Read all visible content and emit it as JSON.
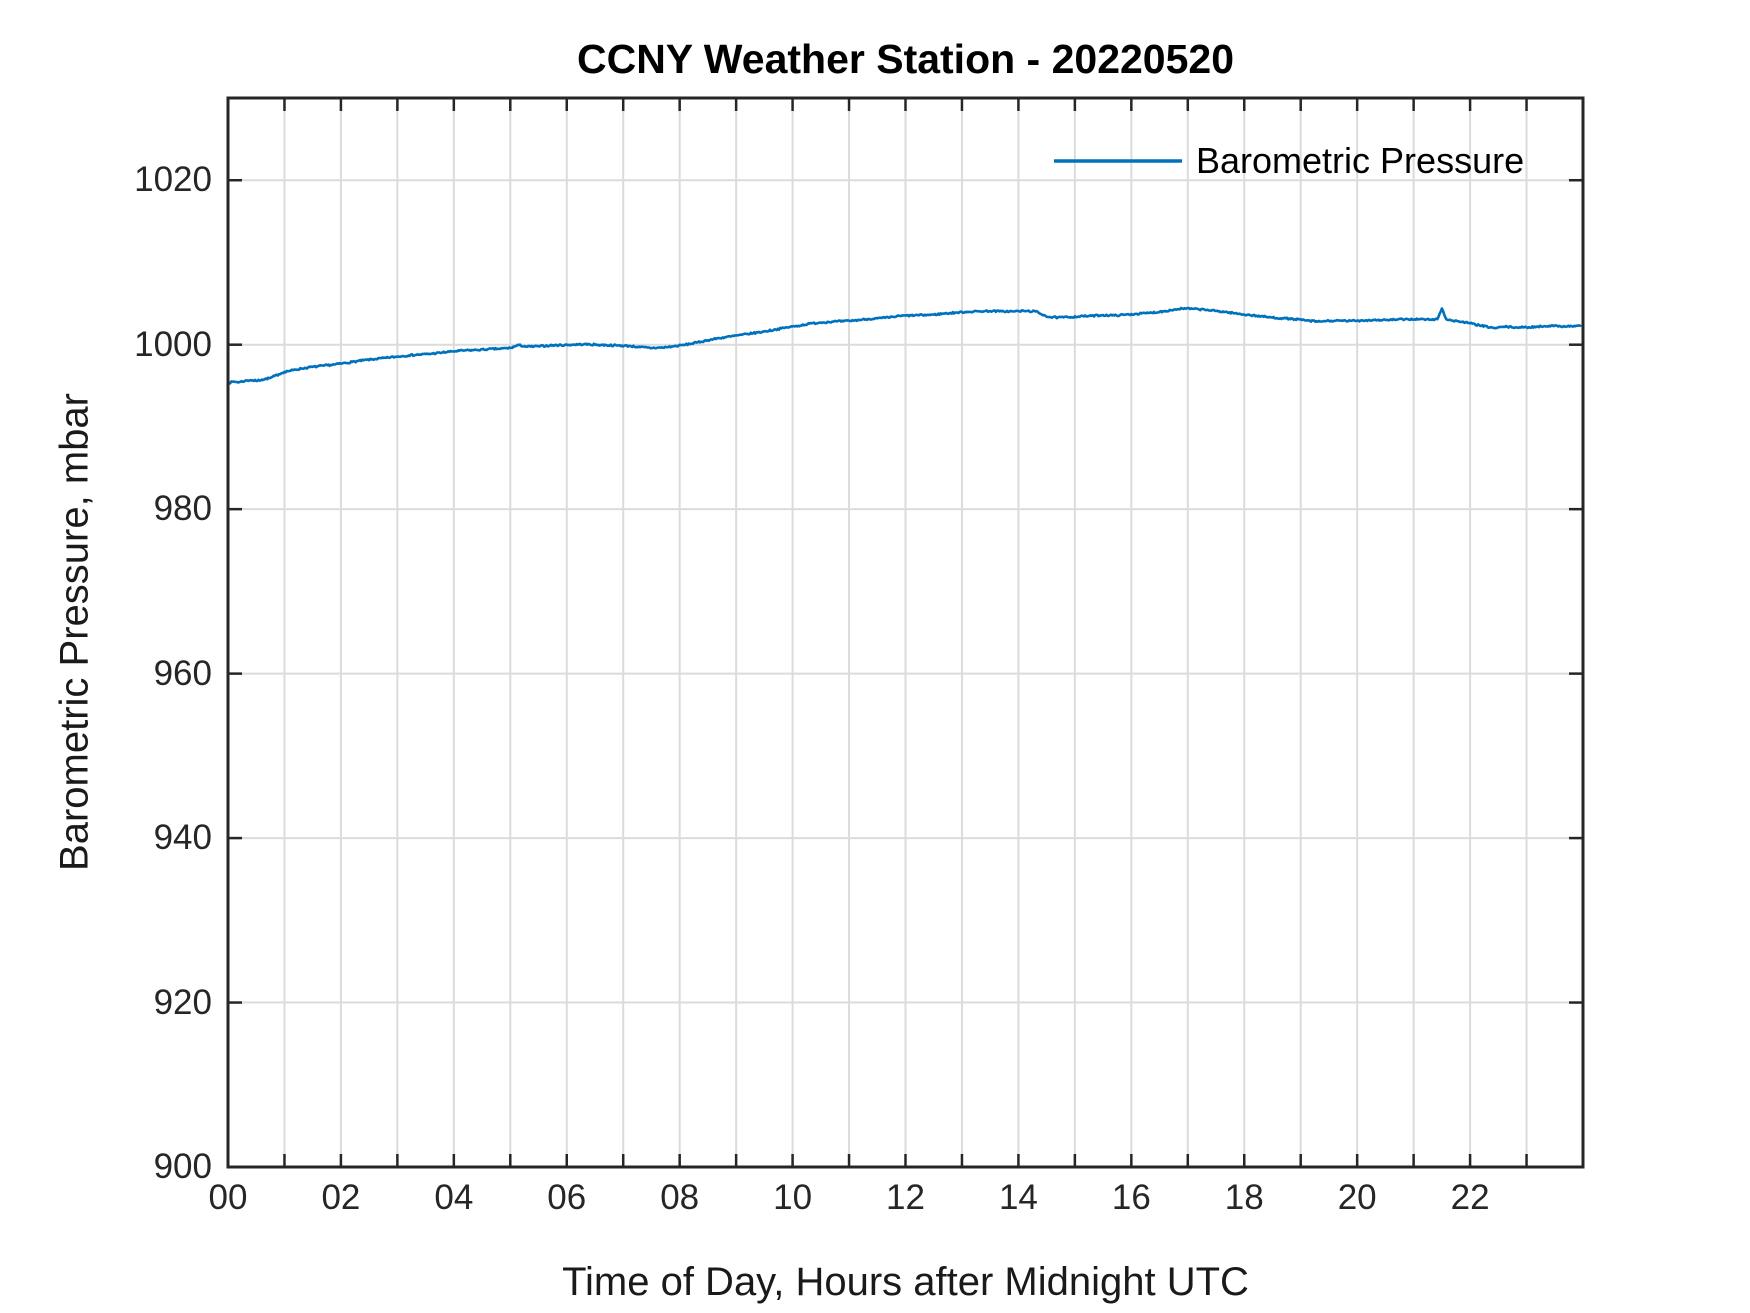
{
  "figure": {
    "title": "CCNY Weather Station - 20220520",
    "xlabel": "Time of Day, Hours after Midnight UTC",
    "ylabel": "Barometric Pressure, mbar",
    "legend": {
      "box": false,
      "position": "top-right",
      "entries": [
        {
          "label": "Barometric Pressure",
          "color": "#0072BD"
        }
      ]
    }
  },
  "colors": {
    "line": "#0072BD",
    "axis": "#262626",
    "grid": "#dbdbdb",
    "background": "#ffffff"
  },
  "chart_data": {
    "type": "line",
    "title": "CCNY Weather Station - 20220520",
    "xlabel": "Time of Day, Hours after Midnight UTC",
    "ylabel": "Barometric Pressure, mbar",
    "xlim": [
      0,
      24
    ],
    "ylim": [
      900,
      1030
    ],
    "grid": true,
    "x_grid_step_hours": 1,
    "x_tick_values": [
      0,
      2,
      4,
      6,
      8,
      10,
      12,
      14,
      16,
      18,
      20,
      22
    ],
    "x_tick_labels": [
      "00",
      "02",
      "04",
      "06",
      "08",
      "10",
      "12",
      "14",
      "16",
      "18",
      "20",
      "22"
    ],
    "y_tick_values": [
      900,
      920,
      940,
      960,
      980,
      1000,
      1020
    ],
    "y_tick_labels": [
      "900",
      "920",
      "940",
      "960",
      "980",
      "1000",
      "1020"
    ],
    "noise_amplitude_mbar": 0.1,
    "series": [
      {
        "name": "Barometric Pressure",
        "color": "#0072BD",
        "units": "mbar",
        "points": [
          [
            0.0,
            995.35
          ],
          [
            0.1,
            995.5
          ],
          [
            0.2,
            995.45
          ],
          [
            0.3,
            995.6
          ],
          [
            0.4,
            995.7
          ],
          [
            0.5,
            995.6
          ],
          [
            0.6,
            995.75
          ],
          [
            0.75,
            995.95
          ],
          [
            0.9,
            996.4
          ],
          [
            1.0,
            996.7
          ],
          [
            1.15,
            996.9
          ],
          [
            1.3,
            997.1
          ],
          [
            1.5,
            997.3
          ],
          [
            1.7,
            997.45
          ],
          [
            1.9,
            997.6
          ],
          [
            2.0,
            997.7
          ],
          [
            2.2,
            997.9
          ],
          [
            2.4,
            998.1
          ],
          [
            2.6,
            998.25
          ],
          [
            2.8,
            998.4
          ],
          [
            3.0,
            998.55
          ],
          [
            3.2,
            998.7
          ],
          [
            3.4,
            998.8
          ],
          [
            3.6,
            998.9
          ],
          [
            3.8,
            999.05
          ],
          [
            4.0,
            999.2
          ],
          [
            4.2,
            999.3
          ],
          [
            4.4,
            999.35
          ],
          [
            4.6,
            999.45
          ],
          [
            4.8,
            999.5
          ],
          [
            5.0,
            999.6
          ],
          [
            5.15,
            999.95
          ],
          [
            5.3,
            999.75
          ],
          [
            5.5,
            999.8
          ],
          [
            5.7,
            999.9
          ],
          [
            5.9,
            999.95
          ],
          [
            6.1,
            1000.0
          ],
          [
            6.3,
            1000.05
          ],
          [
            6.5,
            1000.0
          ],
          [
            6.7,
            999.95
          ],
          [
            6.9,
            999.9
          ],
          [
            7.1,
            999.85
          ],
          [
            7.3,
            999.7
          ],
          [
            7.5,
            999.6
          ],
          [
            7.7,
            999.65
          ],
          [
            7.9,
            999.8
          ],
          [
            8.1,
            1000.0
          ],
          [
            8.3,
            1000.25
          ],
          [
            8.5,
            1000.55
          ],
          [
            8.7,
            1000.8
          ],
          [
            8.9,
            1001.0
          ],
          [
            9.1,
            1001.2
          ],
          [
            9.3,
            1001.4
          ],
          [
            9.5,
            1001.6
          ],
          [
            9.7,
            1001.85
          ],
          [
            9.9,
            1002.1
          ],
          [
            10.1,
            1002.3
          ],
          [
            10.3,
            1002.55
          ],
          [
            10.5,
            1002.7
          ],
          [
            10.7,
            1002.8
          ],
          [
            10.9,
            1002.85
          ],
          [
            11.1,
            1002.95
          ],
          [
            11.3,
            1003.1
          ],
          [
            11.5,
            1003.2
          ],
          [
            11.7,
            1003.3
          ],
          [
            11.9,
            1003.5
          ],
          [
            12.1,
            1003.55
          ],
          [
            12.3,
            1003.6
          ],
          [
            12.5,
            1003.65
          ],
          [
            12.7,
            1003.8
          ],
          [
            12.9,
            1003.9
          ],
          [
            13.1,
            1004.0
          ],
          [
            13.3,
            1004.05
          ],
          [
            13.5,
            1004.1
          ],
          [
            13.7,
            1004.05
          ],
          [
            13.9,
            1004.05
          ],
          [
            14.1,
            1004.1
          ],
          [
            14.3,
            1004.05
          ],
          [
            14.45,
            1003.6
          ],
          [
            14.55,
            1003.35
          ],
          [
            14.7,
            1003.3
          ],
          [
            14.9,
            1003.35
          ],
          [
            15.1,
            1003.45
          ],
          [
            15.3,
            1003.5
          ],
          [
            15.5,
            1003.6
          ],
          [
            15.7,
            1003.55
          ],
          [
            15.9,
            1003.65
          ],
          [
            16.1,
            1003.75
          ],
          [
            16.3,
            1003.85
          ],
          [
            16.5,
            1004.0
          ],
          [
            16.7,
            1004.2
          ],
          [
            16.9,
            1004.4
          ],
          [
            17.1,
            1004.35
          ],
          [
            17.3,
            1004.25
          ],
          [
            17.5,
            1004.1
          ],
          [
            17.7,
            1003.95
          ],
          [
            17.9,
            1003.75
          ],
          [
            18.1,
            1003.6
          ],
          [
            18.3,
            1003.45
          ],
          [
            18.5,
            1003.3
          ],
          [
            18.7,
            1003.2
          ],
          [
            18.9,
            1003.1
          ],
          [
            19.1,
            1002.95
          ],
          [
            19.3,
            1002.8
          ],
          [
            19.5,
            1002.9
          ],
          [
            19.7,
            1002.9
          ],
          [
            19.9,
            1002.9
          ],
          [
            20.1,
            1002.95
          ],
          [
            20.3,
            1003.0
          ],
          [
            20.5,
            1003.0
          ],
          [
            20.7,
            1003.05
          ],
          [
            20.9,
            1003.1
          ],
          [
            21.1,
            1003.1
          ],
          [
            21.3,
            1003.05
          ],
          [
            21.42,
            1003.1
          ],
          [
            21.5,
            1004.4
          ],
          [
            21.58,
            1003.1
          ],
          [
            21.7,
            1002.9
          ],
          [
            21.8,
            1002.85
          ],
          [
            22.0,
            1002.6
          ],
          [
            22.2,
            1002.3
          ],
          [
            22.45,
            1002.0
          ],
          [
            22.6,
            1002.2
          ],
          [
            22.8,
            1002.1
          ],
          [
            23.0,
            1002.1
          ],
          [
            23.2,
            1002.2
          ],
          [
            23.4,
            1002.3
          ],
          [
            23.6,
            1002.25
          ],
          [
            23.8,
            1002.25
          ],
          [
            23.95,
            1002.3
          ]
        ]
      }
    ]
  }
}
